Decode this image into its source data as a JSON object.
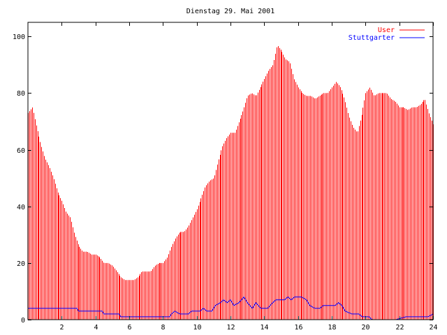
{
  "chart_data": {
    "type": "bar",
    "title": "Dienstag 29. Mai 2001",
    "xlabel": "",
    "ylabel": "",
    "xlim": [
      0,
      24
    ],
    "ylim": [
      0,
      105
    ],
    "x_ticks": [
      "2",
      "4",
      "6",
      "8",
      "10",
      "12",
      "14",
      "16",
      "18",
      "20",
      "22",
      "24"
    ],
    "y_ticks": [
      "0",
      "20",
      "40",
      "60",
      "80",
      "100"
    ],
    "grid": false,
    "legend_position": "top-right",
    "series": [
      {
        "name": "User",
        "style": "impulses",
        "color": "#ff0000",
        "points": [
          [
            0.0,
            73
          ],
          [
            0.25,
            75
          ],
          [
            0.5,
            68
          ],
          [
            0.75,
            62
          ],
          [
            1.0,
            57
          ],
          [
            1.25,
            54
          ],
          [
            1.5,
            50
          ],
          [
            1.75,
            45
          ],
          [
            2.0,
            42
          ],
          [
            2.25,
            38
          ],
          [
            2.5,
            36
          ],
          [
            2.75,
            30
          ],
          [
            3.0,
            26
          ],
          [
            3.25,
            24
          ],
          [
            3.5,
            24
          ],
          [
            3.75,
            23
          ],
          [
            4.0,
            23
          ],
          [
            4.25,
            22
          ],
          [
            4.5,
            20
          ],
          [
            4.75,
            20
          ],
          [
            5.0,
            19
          ],
          [
            5.25,
            17
          ],
          [
            5.5,
            15
          ],
          [
            5.75,
            14
          ],
          [
            6.0,
            14
          ],
          [
            6.25,
            14
          ],
          [
            6.5,
            15
          ],
          [
            6.75,
            17
          ],
          [
            7.0,
            17
          ],
          [
            7.25,
            17
          ],
          [
            7.5,
            19
          ],
          [
            7.75,
            20
          ],
          [
            8.0,
            20
          ],
          [
            8.25,
            22
          ],
          [
            8.5,
            26
          ],
          [
            8.75,
            29
          ],
          [
            9.0,
            31
          ],
          [
            9.25,
            31
          ],
          [
            9.5,
            33
          ],
          [
            9.75,
            36
          ],
          [
            10.0,
            39
          ],
          [
            10.25,
            43
          ],
          [
            10.5,
            47
          ],
          [
            10.75,
            49
          ],
          [
            11.0,
            50
          ],
          [
            11.25,
            56
          ],
          [
            11.5,
            61
          ],
          [
            11.75,
            64
          ],
          [
            12.0,
            66
          ],
          [
            12.25,
            66
          ],
          [
            12.5,
            70
          ],
          [
            12.75,
            74
          ],
          [
            13.0,
            79
          ],
          [
            13.25,
            80
          ],
          [
            13.5,
            79
          ],
          [
            13.75,
            82
          ],
          [
            14.0,
            85
          ],
          [
            14.25,
            88
          ],
          [
            14.5,
            90
          ],
          [
            14.75,
            97
          ],
          [
            15.0,
            95
          ],
          [
            15.25,
            92
          ],
          [
            15.5,
            91
          ],
          [
            15.75,
            85
          ],
          [
            16.0,
            82
          ],
          [
            16.25,
            80
          ],
          [
            16.5,
            79
          ],
          [
            16.75,
            79
          ],
          [
            17.0,
            78
          ],
          [
            17.25,
            79
          ],
          [
            17.5,
            80
          ],
          [
            17.75,
            80
          ],
          [
            18.0,
            82
          ],
          [
            18.25,
            84
          ],
          [
            18.5,
            82
          ],
          [
            18.75,
            78
          ],
          [
            19.0,
            72
          ],
          [
            19.25,
            68
          ],
          [
            19.5,
            66
          ],
          [
            19.75,
            72
          ],
          [
            20.0,
            80
          ],
          [
            20.25,
            82
          ],
          [
            20.5,
            79
          ],
          [
            20.75,
            80
          ],
          [
            21.0,
            80
          ],
          [
            21.25,
            80
          ],
          [
            21.5,
            78
          ],
          [
            21.75,
            77
          ],
          [
            22.0,
            75
          ],
          [
            22.25,
            75
          ],
          [
            22.5,
            74
          ],
          [
            22.75,
            75
          ],
          [
            23.0,
            75
          ],
          [
            23.25,
            76
          ],
          [
            23.5,
            78
          ],
          [
            23.75,
            73
          ],
          [
            24.0,
            69
          ]
        ]
      },
      {
        "name": "Stuttgarter",
        "style": "line",
        "color": "#0000ff",
        "points": [
          [
            0.0,
            4
          ],
          [
            2.0,
            4
          ],
          [
            2.9,
            4
          ],
          [
            3.0,
            3
          ],
          [
            4.0,
            3
          ],
          [
            4.4,
            3
          ],
          [
            4.5,
            2
          ],
          [
            5.4,
            2
          ],
          [
            5.5,
            1
          ],
          [
            8.4,
            1
          ],
          [
            8.5,
            2
          ],
          [
            8.7,
            3
          ],
          [
            9.0,
            2
          ],
          [
            9.5,
            2
          ],
          [
            9.7,
            3
          ],
          [
            10.2,
            3
          ],
          [
            10.4,
            4
          ],
          [
            10.6,
            3
          ],
          [
            10.9,
            3
          ],
          [
            11.1,
            5
          ],
          [
            11.4,
            6
          ],
          [
            11.6,
            7
          ],
          [
            11.8,
            6
          ],
          [
            12.0,
            7
          ],
          [
            12.2,
            5
          ],
          [
            12.5,
            6
          ],
          [
            12.8,
            8
          ],
          [
            13.0,
            6
          ],
          [
            13.3,
            4
          ],
          [
            13.5,
            6
          ],
          [
            13.8,
            4
          ],
          [
            14.2,
            4
          ],
          [
            14.5,
            6
          ],
          [
            14.7,
            7
          ],
          [
            15.2,
            7
          ],
          [
            15.4,
            8
          ],
          [
            15.6,
            7
          ],
          [
            15.8,
            8
          ],
          [
            16.2,
            8
          ],
          [
            16.5,
            7
          ],
          [
            16.7,
            5
          ],
          [
            17.0,
            4
          ],
          [
            17.3,
            4
          ],
          [
            17.5,
            5
          ],
          [
            17.8,
            5
          ],
          [
            18.2,
            5
          ],
          [
            18.4,
            6
          ],
          [
            18.6,
            5
          ],
          [
            18.8,
            3
          ],
          [
            19.2,
            2
          ],
          [
            19.6,
            2
          ],
          [
            19.8,
            1
          ],
          [
            20.2,
            1
          ],
          [
            20.4,
            0
          ],
          [
            20.6,
            0
          ],
          [
            21.8,
            0
          ],
          [
            22.4,
            1
          ],
          [
            23.7,
            1
          ],
          [
            24.0,
            2
          ]
        ]
      }
    ]
  }
}
